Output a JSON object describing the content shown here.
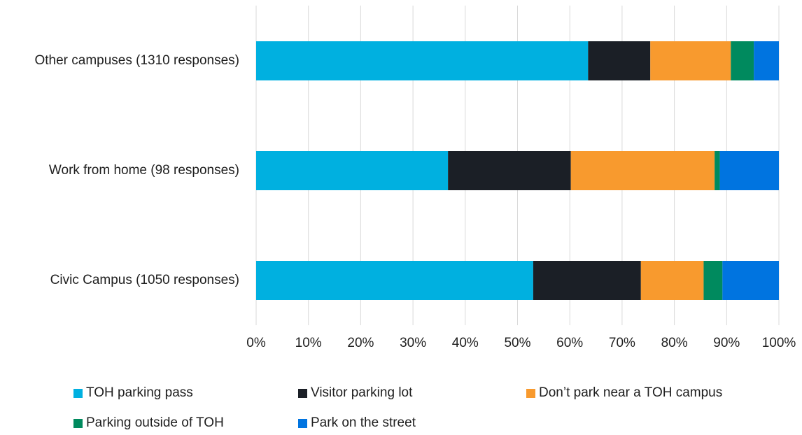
{
  "chart_data": {
    "type": "bar",
    "orientation": "horizontal",
    "stacked": "percent",
    "title": "",
    "xlabel": "",
    "ylabel": "",
    "xlim": [
      0,
      100
    ],
    "x_ticks": [
      "0%",
      "10%",
      "20%",
      "30%",
      "40%",
      "50%",
      "60%",
      "70%",
      "80%",
      "90%",
      "100%"
    ],
    "grid": "vertical",
    "legend_position": "bottom",
    "categories": [
      "Other campuses (1310 responses)",
      "Work from home (98 responses)",
      "Civic Campus (1050 responses)"
    ],
    "series": [
      {
        "name": "TOH parking pass",
        "color": "#00b0e0",
        "values": [
          63.5,
          36.7,
          53.0
        ]
      },
      {
        "name": "Visitor parking lot",
        "color": "#1b1f26",
        "values": [
          11.9,
          23.5,
          20.6
        ]
      },
      {
        "name": "Don’t park near a TOH campus",
        "color": "#f89a2e",
        "values": [
          15.4,
          27.5,
          12.0
        ]
      },
      {
        "name": "Parking outside of TOH",
        "color": "#008a5e",
        "values": [
          4.4,
          1.0,
          3.6
        ]
      },
      {
        "name": "Park on the street",
        "color": "#0074e0",
        "values": [
          4.8,
          11.3,
          10.8
        ]
      }
    ]
  }
}
